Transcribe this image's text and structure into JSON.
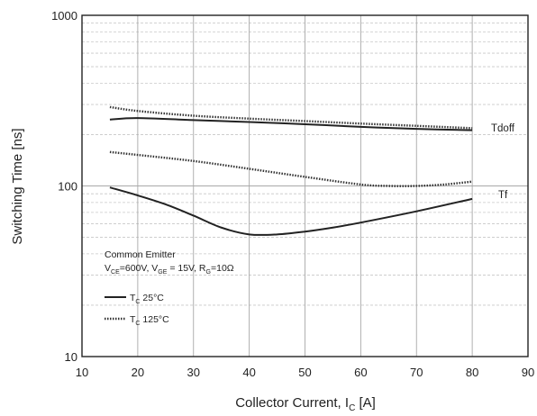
{
  "chart_data": {
    "type": "line",
    "xlabel": "Collector Current, I",
    "xlabel_sub": "C",
    "xlabel_unit": " [A]",
    "ylabel": "Switching Time [ns]",
    "xlim": [
      10,
      90
    ],
    "ylim": [
      10,
      1000
    ],
    "y_scale": "log",
    "x_ticks": [
      10,
      20,
      30,
      40,
      50,
      60,
      70,
      80,
      90
    ],
    "y_ticks": [
      10,
      100,
      1000
    ],
    "grid": true,
    "annotation": {
      "line1": "Common Emitter",
      "line2_parts": [
        {
          "t": "V",
          "sub": false
        },
        {
          "t": "CE",
          "sub": true
        },
        {
          "t": "=600V, V",
          "sub": false
        },
        {
          "t": "GE",
          "sub": true
        },
        {
          "t": " = 15V, R",
          "sub": false
        },
        {
          "t": "G",
          "sub": true
        },
        {
          "t": "=10Ω",
          "sub": false
        }
      ]
    },
    "legend": [
      {
        "style": "solid",
        "parts": [
          {
            "t": "T",
            "sub": false
          },
          {
            "t": "C",
            "sub": true
          },
          {
            "t": " 25°C",
            "sub": false
          }
        ]
      },
      {
        "style": "dotted",
        "parts": [
          {
            "t": "T",
            "sub": false
          },
          {
            "t": "C",
            "sub": true
          },
          {
            "t": " 125°C",
            "sub": false
          }
        ]
      }
    ],
    "series_labels": [
      "Tdoff",
      "Tf"
    ],
    "series": [
      {
        "group": "Tdoff",
        "temp": "25°C",
        "style": "solid",
        "x": [
          15,
          20,
          30,
          40,
          50,
          60,
          70,
          80
        ],
        "y": [
          245,
          250,
          243,
          237,
          230,
          222,
          216,
          212
        ]
      },
      {
        "group": "Tdoff",
        "temp": "125°C",
        "style": "dotted",
        "x": [
          15,
          20,
          30,
          40,
          50,
          60,
          70,
          80
        ],
        "y": [
          290,
          275,
          258,
          248,
          240,
          232,
          225,
          218
        ]
      },
      {
        "group": "Tf",
        "temp": "25°C",
        "style": "solid",
        "x": [
          15,
          20,
          25,
          30,
          35,
          40,
          45,
          50,
          55,
          60,
          70,
          80
        ],
        "y": [
          98,
          88,
          78,
          67,
          57,
          52,
          52,
          54,
          57,
          61,
          71,
          84
        ]
      },
      {
        "group": "Tf",
        "temp": "125°C",
        "style": "dotted",
        "x": [
          15,
          20,
          30,
          40,
          50,
          60,
          65,
          70,
          75,
          80
        ],
        "y": [
          158,
          152,
          140,
          126,
          113,
          102,
          100,
          100,
          102,
          106
        ]
      }
    ]
  }
}
